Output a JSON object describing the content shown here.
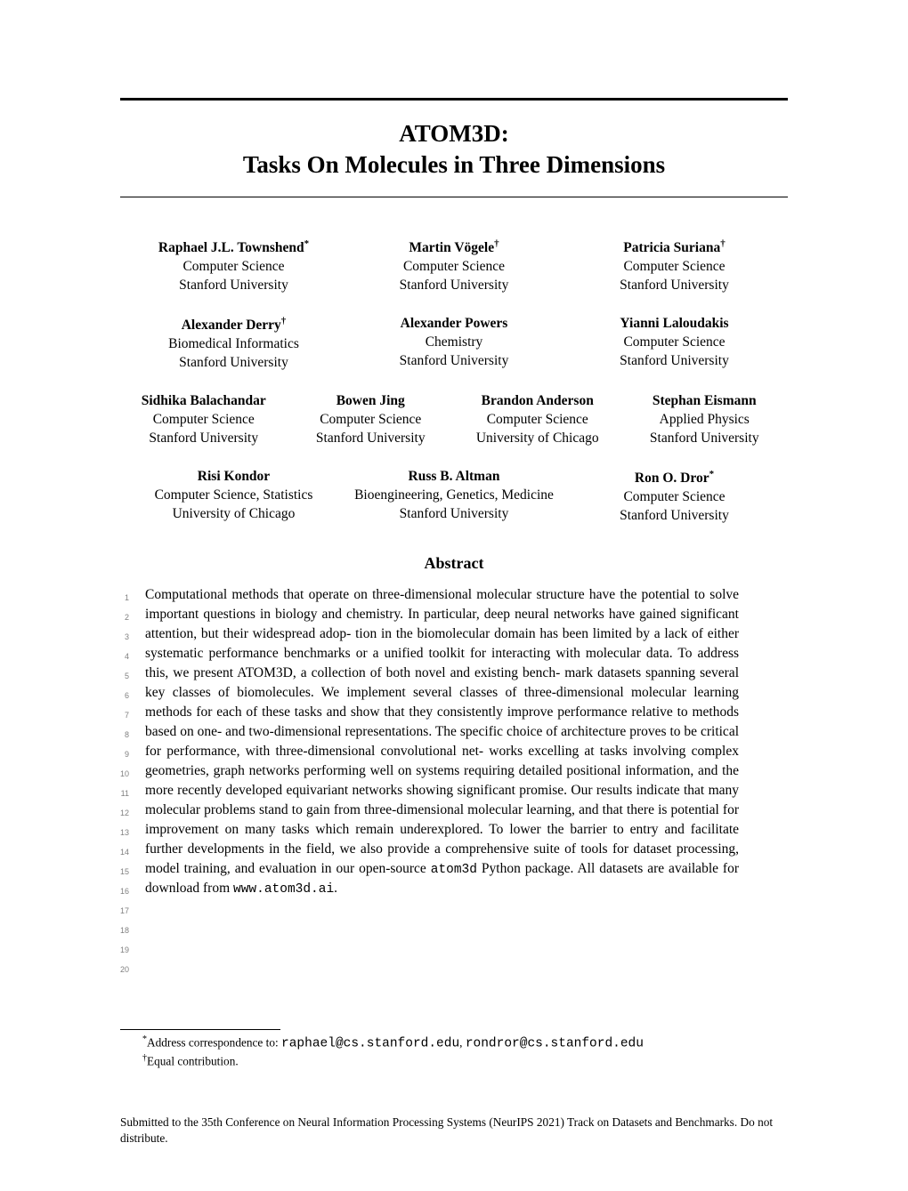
{
  "title_line1": "ATOM3D:",
  "title_line2": "Tasks On Molecules in Three Dimensions",
  "authors": {
    "row1": [
      {
        "name": "Raphael J.L. Townshend",
        "mark": "*",
        "dept": "Computer Science",
        "inst": "Stanford University"
      },
      {
        "name": "Martin Vögele",
        "mark": "†",
        "dept": "Computer Science",
        "inst": "Stanford University"
      },
      {
        "name": "Patricia Suriana",
        "mark": "†",
        "dept": "Computer Science",
        "inst": "Stanford University"
      }
    ],
    "row2": [
      {
        "name": "Alexander Derry",
        "mark": "†",
        "dept": "Biomedical Informatics",
        "inst": "Stanford University"
      },
      {
        "name": "Alexander Powers",
        "mark": "",
        "dept": "Chemistry",
        "inst": "Stanford University"
      },
      {
        "name": "Yianni Laloudakis",
        "mark": "",
        "dept": "Computer Science",
        "inst": "Stanford University"
      }
    ],
    "row3": [
      {
        "name": "Sidhika Balachandar",
        "mark": "",
        "dept": "Computer Science",
        "inst": "Stanford University"
      },
      {
        "name": "Bowen Jing",
        "mark": "",
        "dept": "Computer Science",
        "inst": "Stanford University"
      },
      {
        "name": "Brandon Anderson",
        "mark": "",
        "dept": "Computer Science",
        "inst": "University of Chicago"
      },
      {
        "name": "Stephan Eismann",
        "mark": "",
        "dept": "Applied Physics",
        "inst": "Stanford University"
      }
    ],
    "row4": [
      {
        "name": "Risi Kondor",
        "mark": "",
        "dept": "Computer Science, Statistics",
        "inst": "University of Chicago"
      },
      {
        "name": "Russ B. Altman",
        "mark": "",
        "dept": "Bioengineering, Genetics, Medicine",
        "inst": "Stanford University"
      },
      {
        "name": "Ron O. Dror",
        "mark": "*",
        "dept": "Computer Science",
        "inst": "Stanford University"
      }
    ]
  },
  "abstract_heading": "Abstract",
  "abstract_lines": [
    "Computational methods that operate on three-dimensional molecular structure have",
    "the potential to solve important questions in biology and chemistry. In particular,",
    "deep neural networks have gained significant attention, but their widespread adop-",
    "tion in the biomolecular domain has been limited by a lack of either systematic",
    "performance benchmarks or a unified toolkit for interacting with molecular data. To",
    "address this, we present ATOM3D, a collection of both novel and existing bench-",
    "mark datasets spanning several key classes of biomolecules. We implement several",
    "classes of three-dimensional molecular learning methods for each of these tasks",
    "and show that they consistently improve performance relative to methods based",
    "on one- and two-dimensional representations. The specific choice of architecture",
    "proves to be critical for performance, with three-dimensional convolutional net-",
    "works excelling at tasks involving complex geometries, graph networks performing",
    "well on systems requiring detailed positional information, and the more recently",
    "developed equivariant networks showing significant promise. Our results indicate",
    "that many molecular problems stand to gain from three-dimensional molecular",
    "learning, and that there is potential for improvement on many tasks which remain",
    "underexplored. To lower the barrier to entry and facilitate further developments",
    "in the field, we also provide a comprehensive suite of tools for dataset processing,"
  ],
  "abstract_line19_pre": "model training, and evaluation in our open-source ",
  "abstract_line19_code": "atom3d",
  "abstract_line19_post": " Python package. All",
  "abstract_line20_pre": "datasets are available for download from ",
  "abstract_line20_code": "www.atom3d.ai",
  "abstract_line20_post": ".",
  "line_numbers": [
    "1",
    "2",
    "3",
    "4",
    "5",
    "6",
    "7",
    "8",
    "9",
    "10",
    "11",
    "12",
    "13",
    "14",
    "15",
    "16",
    "17",
    "18",
    "19",
    "20"
  ],
  "footnote1_pre": "Address correspondence to: ",
  "footnote1_code1": "raphael@cs.stanford.edu",
  "footnote1_mid": ", ",
  "footnote1_code2": "rondror@cs.stanford.edu",
  "footnote2": "Equal contribution.",
  "venue": "Submitted to the 35th Conference on Neural Information Processing Systems (NeurIPS 2021) Track on Datasets and Benchmarks. Do not distribute."
}
